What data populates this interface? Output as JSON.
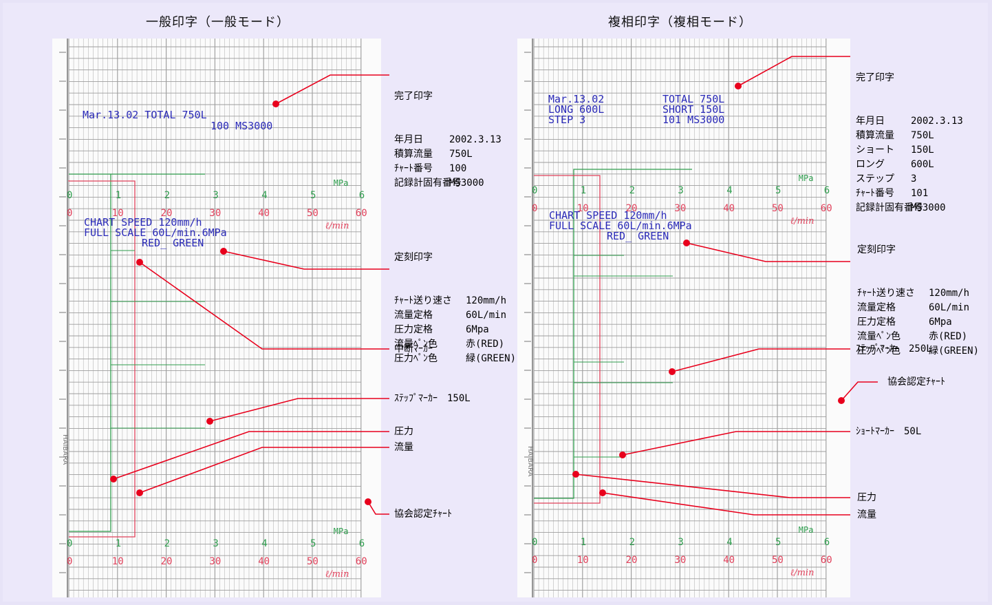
{
  "titles": {
    "left": "一般印字（一般モード）",
    "right": "複相印字（複相モード）"
  },
  "left_chart": {
    "print_line1": "Mar.13.02        TOTAL   750L",
    "print_line2": "100 MS3000",
    "speed_line1": "CHART SPEED 120mm/h",
    "speed_line2": "FULL SCALE 60L/min.6MPa",
    "speed_line3": "RED_      GREEN",
    "mpa_label": "MPa",
    "lmin_label": "ℓ/min",
    "mpa_ticks": [
      "0",
      "1",
      "2",
      "3",
      "4",
      "5",
      "6"
    ],
    "flow_ticks": [
      "0",
      "10",
      "20",
      "30",
      "40",
      "50",
      "60"
    ],
    "vertical_brand": "HAIBARA"
  },
  "right_chart": {
    "print_col1": [
      "Mar.13.02",
      "LONG   600L",
      "STEP   3"
    ],
    "print_col2": [
      "TOTAL   750L",
      "SHORT   150L",
      "101 MS3000"
    ],
    "speed_line1": "CHART SPEED 120mm/h",
    "speed_line2": "FULL SCALE 60L/min.6MPa",
    "speed_line3": "RED_      GREEN",
    "mpa_label": "MPa",
    "lmin_label": "ℓ/min",
    "mpa_ticks": [
      "0",
      "1",
      "2",
      "3",
      "4",
      "5",
      "6"
    ],
    "flow_ticks": [
      "0",
      "10",
      "20",
      "30",
      "40",
      "50",
      "60"
    ],
    "vertical_brand": "HAIBARA"
  },
  "left_labels": {
    "completion": {
      "heading": "完了印字",
      "rows": [
        {
          "key": "年月日",
          "value": "2002.3.13"
        },
        {
          "key": "積算流量",
          "value": "750L"
        },
        {
          "key": "ﾁｬｰﾄ番号",
          "value": "100"
        },
        {
          "key": "記録計固有番号",
          "value": "MS3000"
        }
      ]
    },
    "scheduled": {
      "heading": "定刻印字",
      "rows": [
        {
          "key": "ﾁｬｰﾄ送り速さ",
          "value": "120mm/h"
        },
        {
          "key": "流量定格",
          "value": "60L/min"
        },
        {
          "key": "圧力定格",
          "value": "6Mpa"
        },
        {
          "key": "流量ﾍﾟﾝ色",
          "value": "赤(RED)"
        },
        {
          "key": "圧力ﾍﾟﾝ色",
          "value": "緑(GREEN)"
        }
      ]
    },
    "interrupt": "中断ﾏｰｶｰ",
    "step_marker": "ｽﾃｯﾌﾟﾏｰｶｰ　150L",
    "pressure": "圧力",
    "flow": "流量",
    "certified": "協会認定ﾁｬｰﾄ"
  },
  "right_labels": {
    "completion": {
      "heading": "完了印字",
      "rows": [
        {
          "key": "年月日",
          "value": "2002.3.13"
        },
        {
          "key": "積算流量",
          "value": "750L"
        },
        {
          "key": "ショート",
          "value": "150L"
        },
        {
          "key": "ロング",
          "value": "600L"
        },
        {
          "key": "ステップ",
          "value": "3"
        },
        {
          "key": "ﾁｬｰﾄ番号",
          "value": "101"
        },
        {
          "key": "記録計固有番号",
          "value": "MS3000"
        }
      ]
    },
    "scheduled": {
      "heading": "定刻印字",
      "rows": [
        {
          "key": "ﾁｬｰﾄ送り速さ",
          "value": "120mm/h"
        },
        {
          "key": "流量定格",
          "value": "60L/min"
        },
        {
          "key": "圧力定格",
          "value": "6Mpa"
        },
        {
          "key": "流量ﾍﾟﾝ色",
          "value": "赤(RED)"
        },
        {
          "key": "圧力ﾍﾟﾝ色",
          "value": "緑(GREEN)"
        }
      ]
    },
    "step_marker": "ｽﾃｯﾌﾟﾏｰｶｰ　250L",
    "certified": "協会認定ﾁｬｰﾄ",
    "short_marker": "ｼｮｰﾄﾏｰｶｰ　50L",
    "pressure": "圧力",
    "flow": "流量"
  },
  "colors": {
    "background": "#ece8fa",
    "chart_paper": "#fbfbfb",
    "grid": "#b8b8b8",
    "print_ink": "#2a2ab8",
    "green_pen": "#2f9e4e",
    "red_pen": "#e0405a",
    "marker": "#e8001c"
  }
}
